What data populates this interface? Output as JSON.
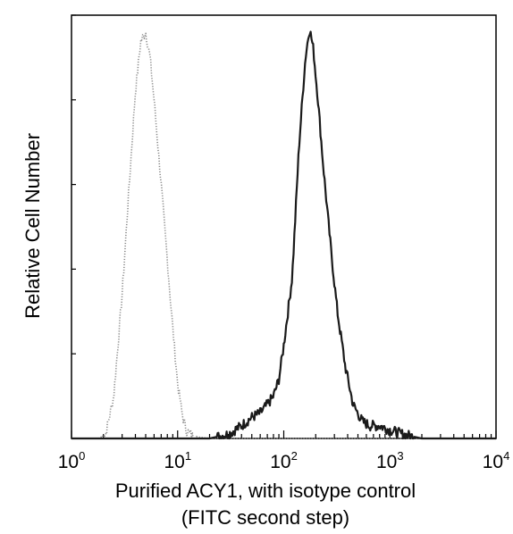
{
  "chart_data": {
    "type": "line",
    "title": "",
    "xlabel": [
      "Purified ACY1, with isotype control",
      "(FITC second step)"
    ],
    "ylabel": "Relative Cell Number",
    "x_scale": "log",
    "xlim": [
      1,
      10000
    ],
    "ylim": [
      0,
      1
    ],
    "grid": false,
    "legend": "none",
    "x_ticks": [
      {
        "base": "10",
        "exp": "0",
        "value": 1
      },
      {
        "base": "10",
        "exp": "1",
        "value": 10
      },
      {
        "base": "10",
        "exp": "2",
        "value": 100
      },
      {
        "base": "10",
        "exp": "3",
        "value": 1000
      },
      {
        "base": "10",
        "exp": "4",
        "value": 10000
      }
    ],
    "y_ticks": [
      0,
      0.2,
      0.4,
      0.6,
      0.8,
      1.0
    ],
    "series": [
      {
        "style": "dotted",
        "color": "#8a8a8a",
        "x": [
          1,
          1.8,
          2.1,
          2.5,
          3.0,
          3.5,
          4.0,
          4.5,
          5.0,
          5.5,
          6.0,
          7.0,
          8.0,
          9.0,
          10.0,
          11.0,
          12.0,
          14.0,
          20.0,
          10000
        ],
        "y": [
          0,
          0,
          0.01,
          0.1,
          0.34,
          0.6,
          0.82,
          0.94,
          0.96,
          0.9,
          0.8,
          0.6,
          0.42,
          0.26,
          0.13,
          0.06,
          0.02,
          0.005,
          0,
          0
        ]
      },
      {
        "style": "solid",
        "color": "#1a1a1a",
        "x": [
          1,
          20,
          30,
          40,
          50,
          60,
          70,
          80,
          90,
          100,
          120,
          140,
          160,
          175,
          190,
          210,
          240,
          280,
          320,
          380,
          450,
          550,
          650,
          800,
          1000,
          1300,
          2000,
          10000
        ],
        "y": [
          0,
          0,
          0.01,
          0.03,
          0.05,
          0.06,
          0.08,
          0.1,
          0.14,
          0.22,
          0.38,
          0.7,
          0.9,
          0.97,
          0.92,
          0.8,
          0.62,
          0.44,
          0.3,
          0.17,
          0.08,
          0.04,
          0.03,
          0.03,
          0.02,
          0.01,
          0,
          0
        ]
      }
    ]
  }
}
